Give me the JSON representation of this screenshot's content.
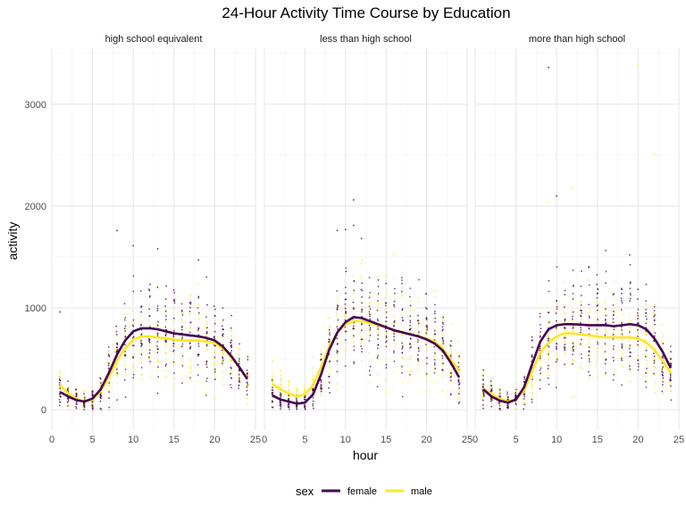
{
  "chart_data": {
    "type": "scatter",
    "title": "24-Hour Activity Time Course by Education",
    "xlabel": "hour",
    "ylabel": "activity",
    "xlim": [
      0,
      25
    ],
    "ylim": [
      -200,
      3550
    ],
    "x_ticks": [
      0,
      5,
      10,
      15,
      20,
      25
    ],
    "x_tick_labels": [
      "0",
      "5",
      "10",
      "15",
      "20",
      "25"
    ],
    "y_ticks": [
      0,
      1000,
      2000,
      3000
    ],
    "y_tick_labels": [
      "0",
      "1000",
      "2000",
      "3000"
    ],
    "grid": true,
    "legend": {
      "title": "sex",
      "position": "bottom",
      "entries": [
        {
          "name": "female",
          "color": "#440154"
        },
        {
          "name": "male",
          "color": "#FDE725"
        }
      ]
    },
    "panels": [
      {
        "label": "high school equivalent",
        "smooth": [
          {
            "name": "female",
            "x": [
              1,
              2,
              3,
              4,
              5,
              6,
              7,
              8,
              9,
              10,
              11,
              12,
              13,
              14,
              15,
              16,
              17,
              18,
              19,
              20,
              21,
              22,
              23,
              24
            ],
            "y": [
              175,
              130,
              95,
              80,
              110,
              200,
              360,
              540,
              680,
              770,
              800,
              800,
              790,
              770,
              750,
              740,
              730,
              720,
              705,
              680,
              620,
              530,
              420,
              300
            ]
          },
          {
            "name": "male",
            "x": [
              1,
              2,
              3,
              4,
              5,
              6,
              7,
              8,
              9,
              10,
              11,
              12,
              13,
              14,
              15,
              16,
              17,
              18,
              19,
              20,
              21,
              22,
              23,
              24
            ],
            "y": [
              240,
              160,
              110,
              80,
              100,
              180,
              320,
              480,
              600,
              690,
              720,
              720,
              710,
              700,
              690,
              680,
              680,
              680,
              670,
              650,
              600,
              520,
              420,
              310
            ]
          }
        ],
        "outliers": [
          {
            "sex": "female",
            "x": 8,
            "y": 1760
          },
          {
            "sex": "female",
            "x": 10,
            "y": 1610
          },
          {
            "sex": "female",
            "x": 13,
            "y": 1580
          },
          {
            "sex": "female",
            "x": 18,
            "y": 1470
          },
          {
            "sex": "female",
            "x": 1,
            "y": 960
          }
        ]
      },
      {
        "label": "less than high school",
        "smooth": [
          {
            "name": "female",
            "x": [
              1,
              2,
              3,
              4,
              5,
              6,
              7,
              8,
              9,
              10,
              11,
              12,
              13,
              14,
              15,
              16,
              17,
              18,
              19,
              20,
              21,
              22,
              23,
              24
            ],
            "y": [
              140,
              100,
              80,
              60,
              70,
              150,
              350,
              590,
              760,
              860,
              910,
              900,
              870,
              840,
              810,
              780,
              760,
              740,
              720,
              690,
              650,
              580,
              460,
              320
            ]
          },
          {
            "name": "male",
            "x": [
              1,
              2,
              3,
              4,
              5,
              6,
              7,
              8,
              9,
              10,
              11,
              12,
              13,
              14,
              15,
              16,
              17,
              18,
              19,
              20,
              21,
              22,
              23,
              24
            ],
            "y": [
              250,
              200,
              160,
              130,
              150,
              240,
              420,
              620,
              760,
              840,
              870,
              870,
              850,
              830,
              810,
              780,
              760,
              740,
              720,
              700,
              670,
              600,
              490,
              380
            ]
          }
        ],
        "outliers": [
          {
            "sex": "female",
            "x": 11,
            "y": 2060
          },
          {
            "sex": "female",
            "x": 11,
            "y": 1810
          },
          {
            "sex": "female",
            "x": 9,
            "y": 1760
          },
          {
            "sex": "female",
            "x": 10,
            "y": 1770
          },
          {
            "sex": "male",
            "x": 16,
            "y": 1530
          }
        ]
      },
      {
        "label": "more than high school",
        "smooth": [
          {
            "name": "female",
            "x": [
              1,
              2,
              3,
              4,
              5,
              6,
              7,
              8,
              9,
              10,
              11,
              12,
              13,
              14,
              15,
              16,
              17,
              18,
              19,
              20,
              21,
              22,
              23,
              24
            ],
            "y": [
              200,
              130,
              90,
              70,
              100,
              220,
              450,
              670,
              790,
              830,
              840,
              840,
              835,
              830,
              830,
              830,
              820,
              830,
              840,
              830,
              790,
              700,
              570,
              410
            ]
          },
          {
            "name": "male",
            "x": [
              1,
              2,
              3,
              4,
              5,
              6,
              7,
              8,
              9,
              10,
              11,
              12,
              13,
              14,
              15,
              16,
              17,
              18,
              19,
              20,
              21,
              22,
              23,
              24
            ],
            "y": [
              210,
              150,
              110,
              80,
              100,
              190,
              380,
              560,
              660,
              720,
              750,
              750,
              740,
              730,
              720,
              710,
              710,
              710,
              710,
              700,
              660,
              590,
              480,
              360
            ]
          }
        ],
        "outliers": [
          {
            "sex": "female",
            "x": 9,
            "y": 3360
          },
          {
            "sex": "male",
            "x": 20,
            "y": 3390
          },
          {
            "sex": "male",
            "x": 22,
            "y": 2510
          },
          {
            "sex": "male",
            "x": 12,
            "y": 2170
          },
          {
            "sex": "female",
            "x": 10,
            "y": 2100
          },
          {
            "sex": "male",
            "x": 9,
            "y": 2040
          }
        ]
      }
    ]
  }
}
